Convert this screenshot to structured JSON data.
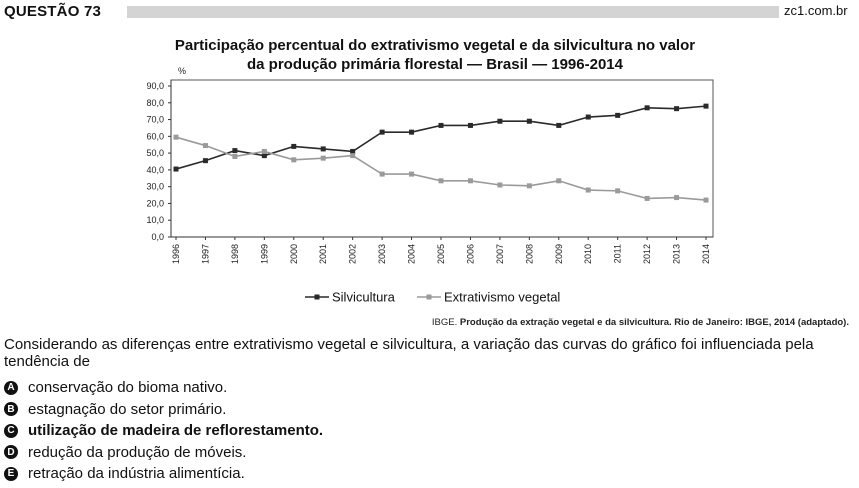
{
  "header": {
    "title": "QUESTÃO 73",
    "site": "zc1.com.br"
  },
  "chart_title_lines": [
    "Participação percentual do extrativismo vegetal e da silvicultura no valor",
    "da produção primária florestal — Brasil — 1996-2014"
  ],
  "chart_data": {
    "type": "line",
    "title": "Participação percentual do extrativismo vegetal e da silvicultura no valor da produção primária florestal — Brasil — 1996-2014",
    "ylabel": "%",
    "xlabel": "",
    "ylim": [
      0,
      90
    ],
    "grid": false,
    "legend_position": "bottom",
    "x": [
      "1996",
      "1997",
      "1998",
      "1999",
      "2000",
      "2001",
      "2002",
      "2003",
      "2004",
      "2005",
      "2006",
      "2007",
      "2008",
      "2009",
      "2010",
      "2011",
      "2012",
      "2013",
      "2014"
    ],
    "yticks": [
      "0,0",
      "10,0",
      "20,0",
      "30,0",
      "40,0",
      "50,0",
      "60,0",
      "70,0",
      "80,0",
      "90,0"
    ],
    "series": [
      {
        "name": "Silvicultura",
        "color": "#2a2a2a",
        "values": [
          40.5,
          45.5,
          51.5,
          48.5,
          54.0,
          52.5,
          51.0,
          62.5,
          62.5,
          66.5,
          66.5,
          69.0,
          69.0,
          66.5,
          71.5,
          72.5,
          77.0,
          76.5,
          78.0
        ]
      },
      {
        "name": "Extrativismo vegetal",
        "color": "#9a9a9a",
        "values": [
          59.5,
          54.5,
          48.0,
          51.0,
          46.0,
          47.0,
          48.5,
          37.5,
          37.5,
          33.5,
          33.5,
          31.0,
          30.5,
          33.5,
          28.0,
          27.5,
          23.0,
          23.5,
          22.0
        ]
      }
    ]
  },
  "source": {
    "org": "IBGE. ",
    "rest": "Produção da extração vegetal e da silvicultura. Rio de Janeiro: IBGE, 2014 (adaptado)."
  },
  "question": "Considerando as diferenças entre extrativismo vegetal e silvicultura, a variação das curvas do gráfico foi influenciada pela tendência de",
  "options": [
    {
      "letter": "A",
      "text": "conservação do bioma nativo."
    },
    {
      "letter": "B",
      "text": "estagnação do setor primário."
    },
    {
      "letter": "C",
      "text": "utilização de madeira de reflorestamento."
    },
    {
      "letter": "D",
      "text": "redução da produção de móveis."
    },
    {
      "letter": "E",
      "text": "retração da indústria alimentícia."
    }
  ]
}
